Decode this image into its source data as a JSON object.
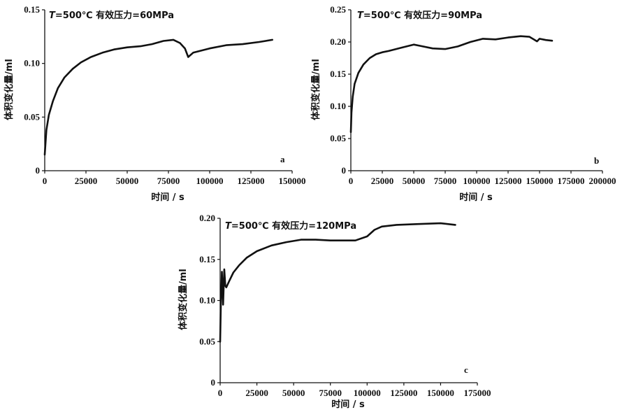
{
  "chart_data": [
    {
      "type": "line",
      "panel": "a",
      "annotation": {
        "var": "T",
        "text": "=500℃  有效压力=60MPa"
      },
      "xlabel": "时间 / s",
      "ylabel": "体积变化量/ml",
      "xlim": [
        0,
        150000
      ],
      "ylim": [
        0,
        0.15
      ],
      "xticks": [
        0,
        25000,
        50000,
        75000,
        100000,
        125000,
        150000
      ],
      "yticks": [
        0,
        0.05,
        0.1,
        0.15
      ],
      "ytick_labels": [
        "0",
        "0.05",
        "0.10",
        "0.15"
      ],
      "series": [
        {
          "x": [
            0,
            1000,
            2500,
            5000,
            8000,
            12000,
            17000,
            22000,
            28000,
            35000,
            42000,
            50000,
            58000,
            65000,
            72000,
            78000,
            82000,
            85000,
            87000,
            90000,
            95000,
            100000,
            110000,
            120000,
            130000,
            138000
          ],
          "y": [
            0.015,
            0.038,
            0.052,
            0.065,
            0.077,
            0.087,
            0.095,
            0.101,
            0.106,
            0.11,
            0.113,
            0.115,
            0.116,
            0.118,
            0.121,
            0.122,
            0.119,
            0.114,
            0.106,
            0.11,
            0.112,
            0.114,
            0.117,
            0.118,
            0.12,
            0.122
          ]
        }
      ]
    },
    {
      "type": "line",
      "panel": "b",
      "annotation": {
        "var": "T",
        "text": "=500℃  有效压力=90MPa"
      },
      "xlabel": "时间 / s",
      "ylabel": "体积变化量/ml",
      "xlim": [
        0,
        200000
      ],
      "ylim": [
        0,
        0.25
      ],
      "xticks": [
        0,
        25000,
        50000,
        75000,
        100000,
        125000,
        150000,
        175000,
        200000
      ],
      "yticks": [
        0,
        0.05,
        0.1,
        0.15,
        0.2,
        0.25
      ],
      "ytick_labels": [
        "0",
        "0.05",
        "0.10",
        "0.15",
        "0.20",
        "0.25"
      ],
      "series": [
        {
          "x": [
            0,
            500,
            1500,
            3000,
            6000,
            10000,
            15000,
            20000,
            25000,
            30000,
            40000,
            50000,
            55000,
            65000,
            75000,
            85000,
            95000,
            105000,
            115000,
            125000,
            135000,
            142000,
            148000,
            150000,
            155000,
            160000
          ],
          "y": [
            0.06,
            0.09,
            0.115,
            0.135,
            0.152,
            0.165,
            0.175,
            0.181,
            0.184,
            0.186,
            0.191,
            0.196,
            0.194,
            0.19,
            0.189,
            0.193,
            0.2,
            0.205,
            0.204,
            0.207,
            0.209,
            0.208,
            0.201,
            0.205,
            0.203,
            0.202
          ]
        }
      ]
    },
    {
      "type": "line",
      "panel": "c",
      "annotation": {
        "var": "T",
        "text": "=500℃  有效压力=120MPa"
      },
      "xlabel": "时间 / s",
      "ylabel": "体积变化量/ml",
      "xlim": [
        0,
        175000
      ],
      "ylim": [
        0,
        0.2
      ],
      "xticks": [
        0,
        25000,
        50000,
        75000,
        100000,
        125000,
        150000,
        175000
      ],
      "yticks": [
        0,
        0.05,
        0.1,
        0.15,
        0.2
      ],
      "ytick_labels": [
        "0",
        "0.05",
        "0.10",
        "0.15",
        "0.20"
      ],
      "series": [
        {
          "x": [
            0,
            500,
            1200,
            2000,
            2800,
            3500,
            4200,
            6000,
            9000,
            13000,
            18000,
            25000,
            35000,
            45000,
            55000,
            65000,
            75000,
            85000,
            92000,
            100000,
            105000,
            110000,
            120000,
            135000,
            150000,
            160000
          ],
          "y": [
            0.05,
            0.1,
            0.135,
            0.095,
            0.138,
            0.118,
            0.116,
            0.123,
            0.134,
            0.143,
            0.152,
            0.16,
            0.167,
            0.171,
            0.174,
            0.174,
            0.173,
            0.173,
            0.173,
            0.178,
            0.186,
            0.19,
            0.192,
            0.193,
            0.194,
            0.192
          ]
        }
      ]
    }
  ]
}
